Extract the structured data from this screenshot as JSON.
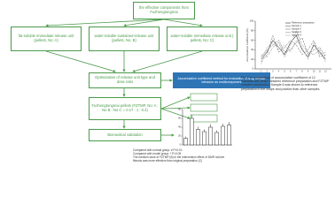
{
  "flowchart": {
    "source": "the effective components from Fuzhengtongmai",
    "units": [
      "fat-soluble immediate release unit (pellets, No: A)",
      "water-soluble sustained-release unit (pellets, No: B)",
      "water-soluble immediate release unit ( pellets, No: C)"
    ],
    "optimization": "Optimization of release unit type and dose ratio",
    "evaluation": "Accumulative coefficient method for evaluation of drug release behavior as multicomponent",
    "product": "Fuzhengtongmai pellets (FZTMP, No: A : No B : No C = 0.17 : 1 : 0.4)",
    "validation": "Biomedical validation"
  },
  "line_caption": "Fig. The comparation of accumulative coefficient of 12 characteristic peaks between reference preparation and FZTMP samples preparation. Sample 6 was shown to reference preparation in the shape and position than other samples.",
  "bar_notes": [
    "Compared with normal group: # P<0.01",
    "Compared with model group: * P<0.05",
    "The medium dose of FZTMP (B) in the intervention effect of DMR rat liver fibrosis was more effective than original preparation (C)"
  ],
  "chart_data": [
    {
      "type": "line",
      "ylabel": "Accumulative coefficient (%)",
      "categories": [
        "1",
        "2",
        "3",
        "4",
        "5",
        "6",
        "7",
        "8",
        "9",
        "10",
        "11",
        "12"
      ],
      "ylim": [
        0,
        100
      ],
      "yticks": [
        0,
        20,
        40,
        60,
        80,
        100
      ],
      "series": [
        {
          "name": "Reference preparation",
          "color": "#000000",
          "values": [
            20,
            35,
            60,
            45,
            30,
            55,
            70,
            40,
            25,
            50,
            35,
            20
          ]
        },
        {
          "name": "Sample 1",
          "color": "#444444",
          "values": [
            25,
            40,
            50,
            60,
            35,
            40,
            55,
            65,
            30,
            40,
            45,
            25
          ]
        },
        {
          "name": "Sample 2",
          "color": "#666666",
          "values": [
            15,
            30,
            70,
            35,
            45,
            60,
            50,
            30,
            40,
            60,
            25,
            30
          ]
        },
        {
          "name": "Sample 3",
          "color": "#888888",
          "values": [
            30,
            25,
            45,
            55,
            25,
            50,
            80,
            50,
            35,
            30,
            40,
            15
          ]
        },
        {
          "name": "Sample 4",
          "color": "#aaaaaa",
          "values": [
            10,
            45,
            55,
            40,
            50,
            35,
            60,
            45,
            20,
            55,
            30,
            35
          ]
        }
      ]
    },
    {
      "type": "bar",
      "categories": [
        null,
        null,
        null,
        null,
        null,
        null,
        null,
        null
      ],
      "ylim": [
        0,
        80
      ],
      "yticks": [
        0,
        20,
        40,
        60,
        80
      ],
      "color": "#ffffff",
      "values": [
        15,
        60,
        35,
        30,
        40,
        28,
        42,
        45
      ],
      "errors": [
        4,
        8,
        6,
        5,
        7,
        5,
        6,
        7
      ]
    }
  ]
}
